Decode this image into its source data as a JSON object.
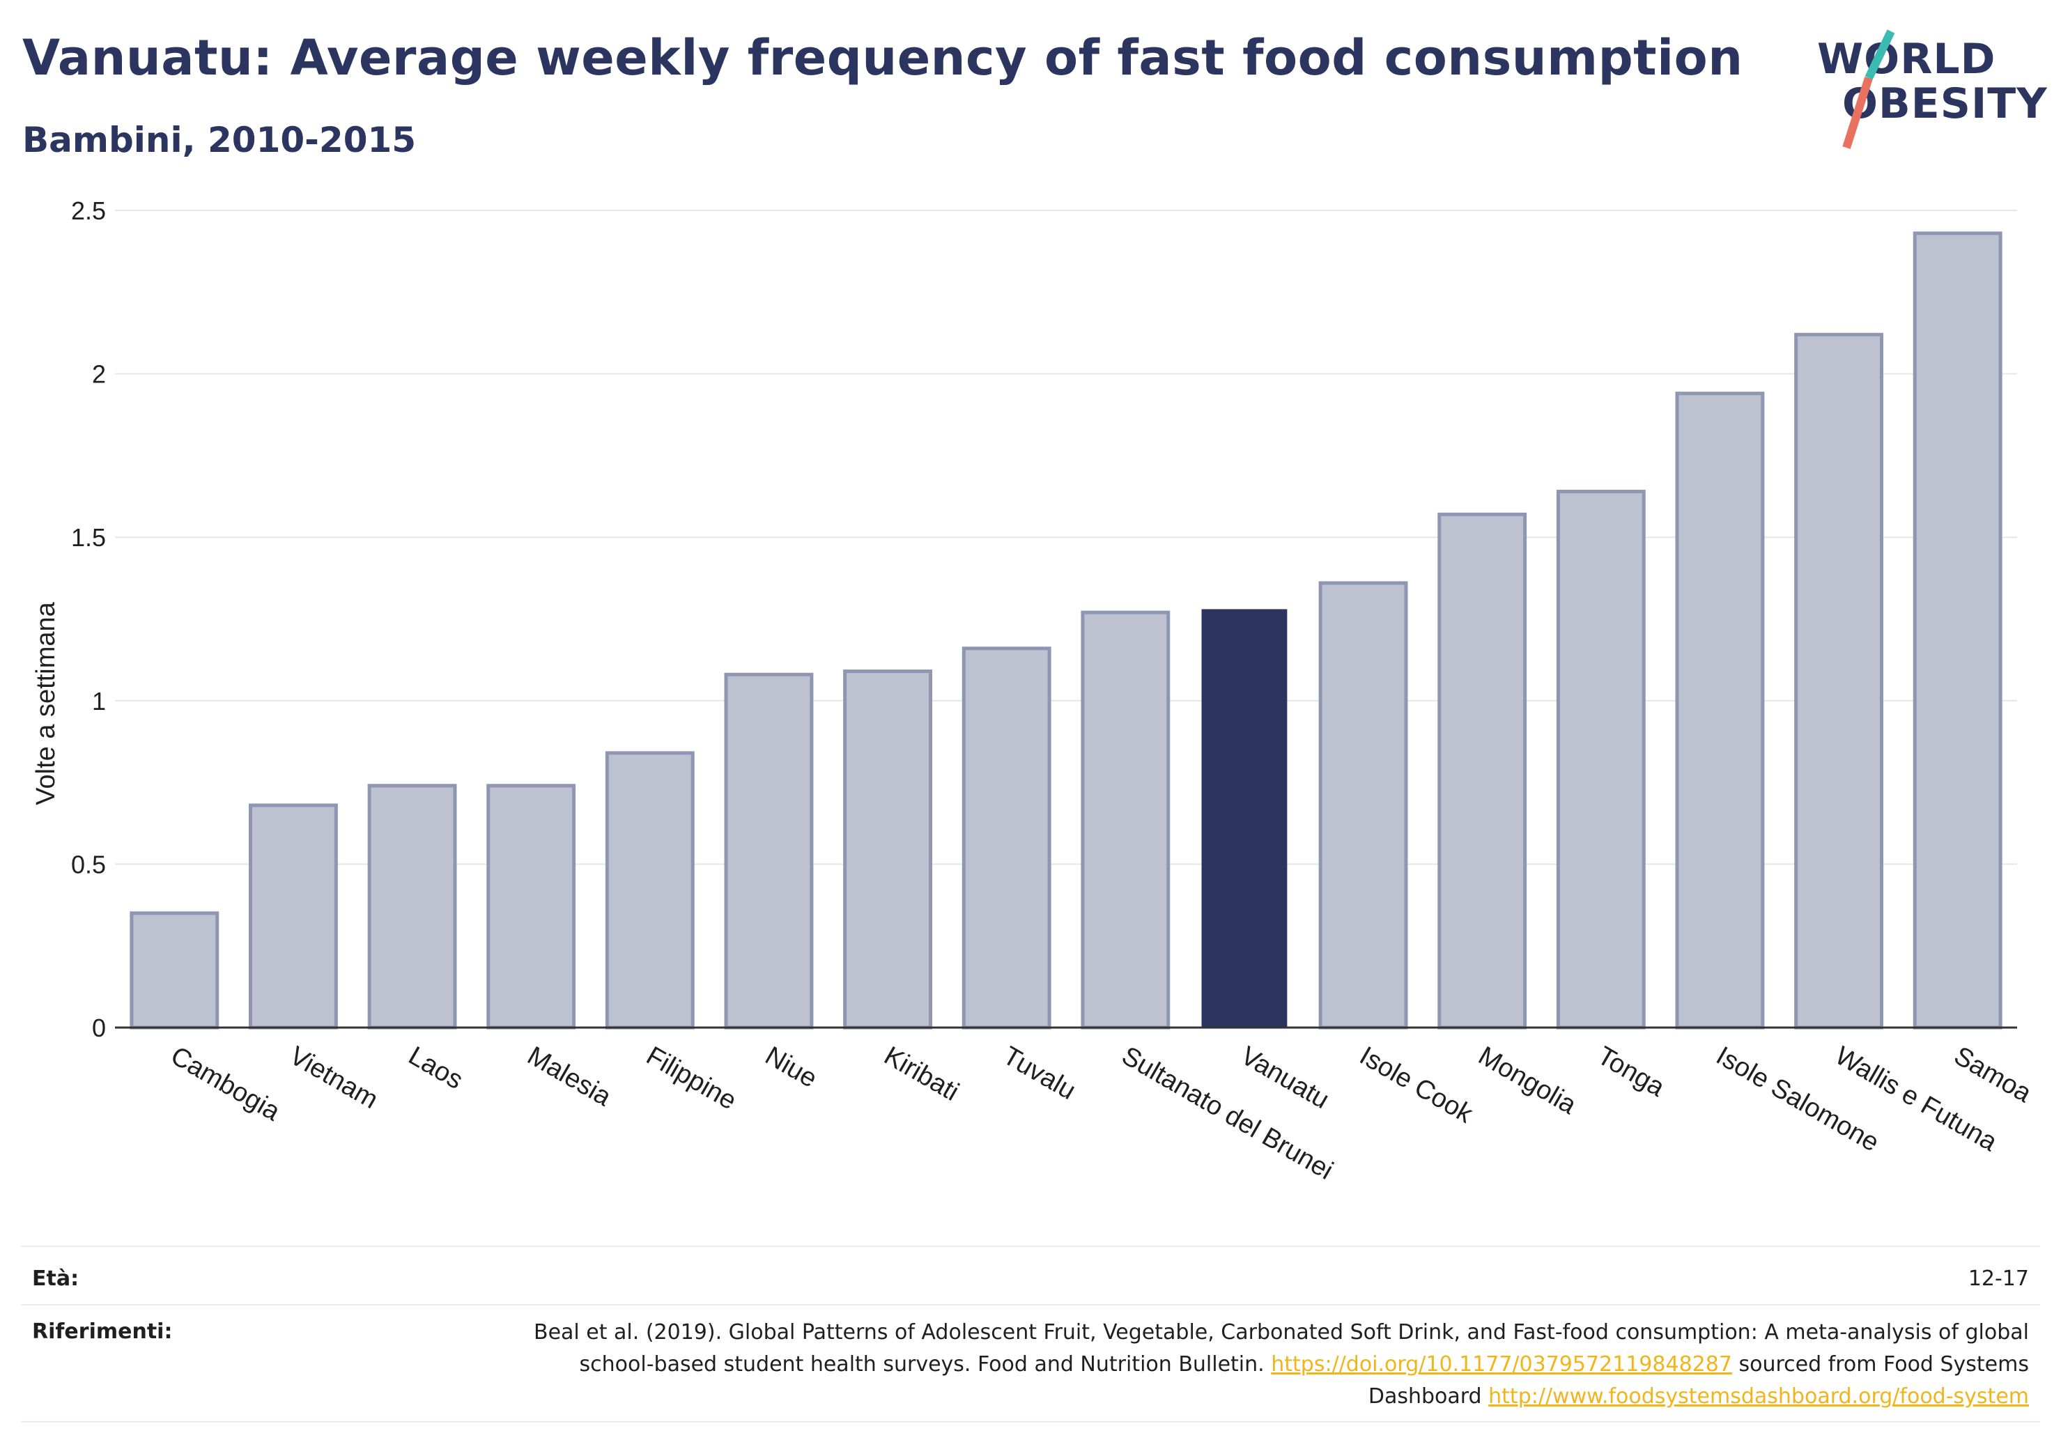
{
  "header": {
    "title": "Vanuatu: Average weekly frequency of fast food consumption",
    "subtitle": "Bambini, 2010-2015"
  },
  "logo": {
    "line1": "WORLD",
    "line2": "OBESITY"
  },
  "colors": {
    "highlight": "#2b3560",
    "bar": "#bec2d0",
    "bar_outline": "#8f96b1",
    "grid": "#e6e6e6",
    "link": "#f1b51c",
    "logo_teal": "#3bbcb2",
    "logo_coral": "#e8725f"
  },
  "chart_data": {
    "type": "bar",
    "categories": [
      "Cambogia",
      "Vietnam",
      "Laos",
      "Malesia",
      "Filippine",
      "Niue",
      "Kiribati",
      "Tuvalu",
      "Sultanato del Brunei",
      "Vanuatu",
      "Isole Cook",
      "Mongolia",
      "Tonga",
      "Isole Salomone",
      "Wallis e Futuna",
      "Samoa"
    ],
    "values": [
      0.35,
      0.68,
      0.74,
      0.74,
      0.84,
      1.08,
      1.09,
      1.16,
      1.27,
      1.28,
      1.36,
      1.57,
      1.64,
      1.94,
      2.12,
      2.43
    ],
    "highlight": "Vanuatu",
    "ylabel": "Volte a settimana",
    "ylim": [
      0,
      2.5
    ],
    "yticks": [
      0,
      0.5,
      1,
      1.5,
      2,
      2.5
    ],
    "ytick_labels": [
      "0",
      "0.5",
      "1",
      "1.5",
      "2",
      "2.5"
    ],
    "grid": true
  },
  "footer": {
    "age_label": "Età:",
    "age_value": "12-17",
    "ref_label": "Riferimenti:",
    "ref_text_1": "Beal et al. (2019). Global Patterns of Adolescent Fruit, Vegetable, Carbonated Soft Drink, and Fast-food consumption: A meta-analysis of global school-based student health surveys. Food and Nutrition Bulletin.",
    "ref_link_1": "https://doi.org/10.1177/0379572119848287",
    "ref_text_2": "sourced from Food Systems Dashboard",
    "ref_link_2": "http://www.foodsystemsdashboard.org/food-system"
  }
}
